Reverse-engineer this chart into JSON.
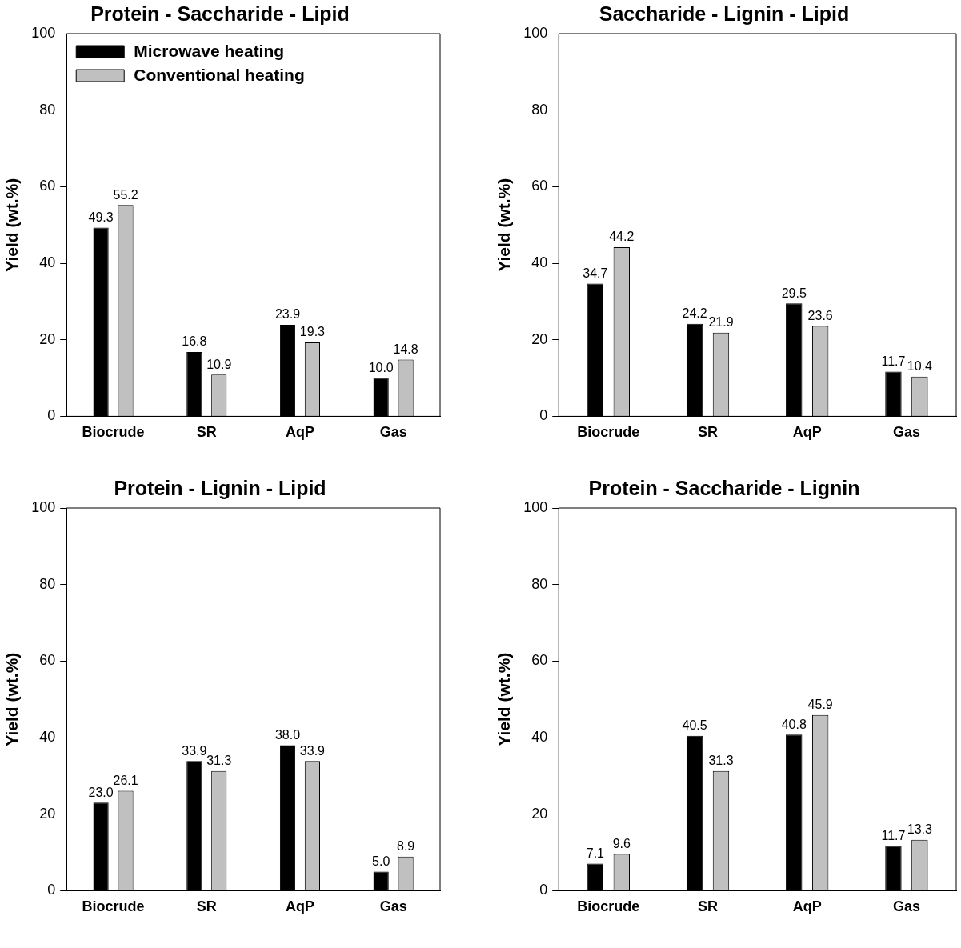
{
  "chart_data": [
    {
      "type": "bar",
      "title": "Protein - Saccharide - Lipid",
      "ylabel": "Yield (wt.%)",
      "categories": [
        "Biocrude",
        "SR",
        "AqP",
        "Gas"
      ],
      "ylim": [
        0,
        100
      ],
      "yticks": [
        0,
        20,
        40,
        60,
        80,
        100
      ],
      "legend": "top left",
      "series": [
        {
          "name": "Microwave heating",
          "color": "#000000",
          "values": [
            49.3,
            16.8,
            23.9,
            10.0
          ],
          "value_labels": [
            "49.3",
            "16.8",
            "23.9",
            "10.0"
          ]
        },
        {
          "name": "Conventional heating",
          "color": "#c0c0c0",
          "values": [
            55.2,
            10.9,
            19.3,
            14.8
          ],
          "value_labels": [
            "55.2",
            "10.9",
            "19.3",
            "14.8"
          ]
        }
      ]
    },
    {
      "type": "bar",
      "title": "Saccharide - Lignin - Lipid",
      "ylabel": "Yield (wt.%)",
      "categories": [
        "Biocrude",
        "SR",
        "AqP",
        "Gas"
      ],
      "ylim": [
        0,
        100
      ],
      "yticks": [
        0,
        20,
        40,
        60,
        80,
        100
      ],
      "series": [
        {
          "color": "#000000",
          "values": [
            34.7,
            24.2,
            29.5,
            11.7
          ],
          "value_labels": [
            "34.7",
            "24.2",
            "29.5",
            "11.7"
          ]
        },
        {
          "color": "#c0c0c0",
          "values": [
            44.2,
            21.9,
            23.6,
            10.4
          ],
          "value_labels": [
            "44.2",
            "21.9",
            "23.6",
            "10.4"
          ]
        }
      ]
    },
    {
      "type": "bar",
      "title": "Protein - Lignin - Lipid",
      "ylabel": "Yield (wt.%)",
      "categories": [
        "Biocrude",
        "SR",
        "AqP",
        "Gas"
      ],
      "ylim": [
        0,
        100
      ],
      "yticks": [
        0,
        20,
        40,
        60,
        80,
        100
      ],
      "series": [
        {
          "color": "#000000",
          "values": [
            23.0,
            33.9,
            38.0,
            5.0
          ],
          "value_labels": [
            "23.0",
            "33.9",
            "38.0",
            "5.0"
          ]
        },
        {
          "color": "#c0c0c0",
          "values": [
            26.1,
            31.3,
            33.9,
            8.9
          ],
          "value_labels": [
            "26.1",
            "31.3",
            "33.9",
            "8.9"
          ]
        }
      ]
    },
    {
      "type": "bar",
      "title": "Protein - Saccharide - Lignin",
      "ylabel": "Yield (wt.%)",
      "categories": [
        "Biocrude",
        "SR",
        "AqP",
        "Gas"
      ],
      "ylim": [
        0,
        100
      ],
      "yticks": [
        0,
        20,
        40,
        60,
        80,
        100
      ],
      "series": [
        {
          "color": "#000000",
          "values": [
            7.1,
            40.5,
            40.8,
            11.7
          ],
          "value_labels": [
            "7.1",
            "40.5",
            "40.8",
            "11.7"
          ]
        },
        {
          "color": "#c0c0c0",
          "values": [
            9.6,
            31.3,
            45.9,
            13.3
          ],
          "value_labels": [
            "9.6",
            "31.3",
            "45.9",
            "13.3"
          ]
        }
      ]
    }
  ]
}
